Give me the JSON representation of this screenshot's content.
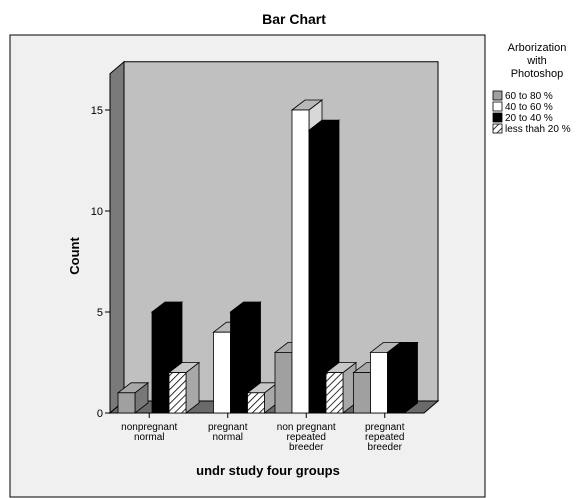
{
  "chart_data": {
    "type": "bar",
    "title": "Bar Chart",
    "xlabel": "undr study four  groups",
    "ylabel": "Count",
    "ylim": [
      0,
      16
    ],
    "yticks": [
      0,
      5,
      10,
      15
    ],
    "categories": [
      [
        "nonpregnant",
        "normal"
      ],
      [
        "pregnant",
        "normal"
      ],
      [
        "non pregnant",
        "repeated",
        "breeder"
      ],
      [
        "pregnant",
        "repeated",
        "breeder"
      ]
    ],
    "legend_title": [
      "Arborization",
      "with",
      "Photoshop"
    ],
    "legend_position": "top-right",
    "grid": false,
    "series": [
      {
        "name": "60 to 80 %",
        "color": "#a0a0a0",
        "values": [
          1,
          0,
          3,
          2
        ]
      },
      {
        "name": "40 to 60 %",
        "color": "#ffffff",
        "values": [
          0,
          4,
          15,
          3
        ]
      },
      {
        "name": "20 to 40 %",
        "color": "#000000",
        "values": [
          5,
          5,
          14,
          3
        ]
      },
      {
        "name": "less thah 20 %",
        "color": "hatch",
        "values": [
          2,
          1,
          2,
          0
        ]
      }
    ]
  }
}
